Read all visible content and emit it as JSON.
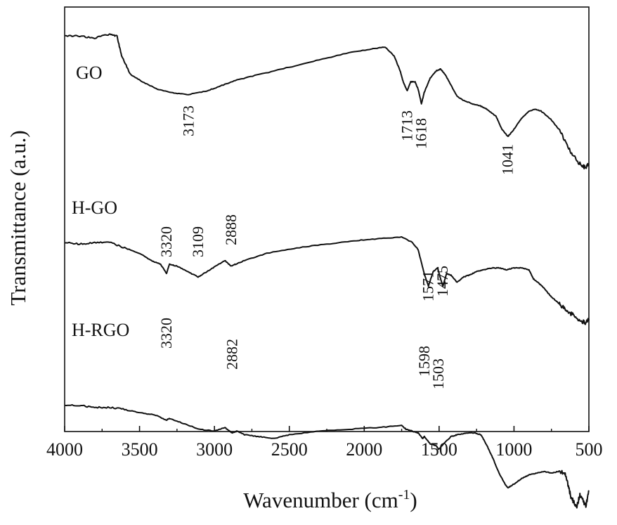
{
  "chart_data": {
    "type": "line",
    "xlabel": "Wavenumber (cm",
    "xlabel_sup": "-1",
    "xlabel_end": ")",
    "ylabel": "Transmittance (a.u.)",
    "xlim": [
      4000,
      500
    ],
    "x_reversed": true,
    "yticks_shown": false,
    "grid": false,
    "xticks": [
      "4000",
      "3500",
      "3000",
      "2500",
      "2000",
      "1500",
      "1000",
      "500"
    ],
    "series": [
      {
        "name": "GO",
        "points": [
          [
            4000,
            0.91
          ],
          [
            3900,
            0.91
          ],
          [
            3800,
            0.9
          ],
          [
            3700,
            0.92
          ],
          [
            3650,
            0.91
          ],
          [
            3620,
            0.8
          ],
          [
            3560,
            0.7
          ],
          [
            3480,
            0.66
          ],
          [
            3380,
            0.62
          ],
          [
            3280,
            0.6
          ],
          [
            3173,
            0.59
          ],
          [
            3050,
            0.61
          ],
          [
            2950,
            0.64
          ],
          [
            2850,
            0.67
          ],
          [
            2700,
            0.7
          ],
          [
            2500,
            0.74
          ],
          [
            2300,
            0.78
          ],
          [
            2100,
            0.82
          ],
          [
            1950,
            0.84
          ],
          [
            1860,
            0.85
          ],
          [
            1800,
            0.8
          ],
          [
            1760,
            0.72
          ],
          [
            1740,
            0.66
          ],
          [
            1713,
            0.61
          ],
          [
            1690,
            0.66
          ],
          [
            1660,
            0.66
          ],
          [
            1640,
            0.62
          ],
          [
            1618,
            0.54
          ],
          [
            1600,
            0.6
          ],
          [
            1560,
            0.68
          ],
          [
            1520,
            0.72
          ],
          [
            1490,
            0.73
          ],
          [
            1460,
            0.7
          ],
          [
            1420,
            0.64
          ],
          [
            1380,
            0.58
          ],
          [
            1340,
            0.56
          ],
          [
            1280,
            0.54
          ],
          [
            1230,
            0.53
          ],
          [
            1180,
            0.51
          ],
          [
            1120,
            0.47
          ],
          [
            1080,
            0.4
          ],
          [
            1041,
            0.36
          ],
          [
            1000,
            0.4
          ],
          [
            950,
            0.46
          ],
          [
            900,
            0.5
          ],
          [
            860,
            0.51
          ],
          [
            820,
            0.5
          ],
          [
            760,
            0.46
          ],
          [
            700,
            0.4
          ],
          [
            650,
            0.32
          ],
          [
            600,
            0.25
          ],
          [
            550,
            0.2
          ],
          [
            520,
            0.19
          ],
          [
            500,
            0.21
          ]
        ]
      },
      {
        "name": "H-GO",
        "points": [
          [
            4000,
            0.62
          ],
          [
            3900,
            0.61
          ],
          [
            3800,
            0.62
          ],
          [
            3700,
            0.62
          ],
          [
            3600,
            0.59
          ],
          [
            3500,
            0.56
          ],
          [
            3420,
            0.52
          ],
          [
            3360,
            0.5
          ],
          [
            3320,
            0.45
          ],
          [
            3300,
            0.5
          ],
          [
            3250,
            0.49
          ],
          [
            3180,
            0.46
          ],
          [
            3109,
            0.43
          ],
          [
            3050,
            0.46
          ],
          [
            2990,
            0.49
          ],
          [
            2930,
            0.52
          ],
          [
            2888,
            0.49
          ],
          [
            2860,
            0.5
          ],
          [
            2800,
            0.52
          ],
          [
            2650,
            0.56
          ],
          [
            2450,
            0.59
          ],
          [
            2250,
            0.61
          ],
          [
            2050,
            0.63
          ],
          [
            1900,
            0.64
          ],
          [
            1750,
            0.65
          ],
          [
            1680,
            0.62
          ],
          [
            1640,
            0.58
          ],
          [
            1600,
            0.45
          ],
          [
            1571,
            0.38
          ],
          [
            1540,
            0.46
          ],
          [
            1510,
            0.48
          ],
          [
            1490,
            0.42
          ],
          [
            1475,
            0.38
          ],
          [
            1450,
            0.45
          ],
          [
            1420,
            0.44
          ],
          [
            1380,
            0.4
          ],
          [
            1340,
            0.43
          ],
          [
            1300,
            0.44
          ],
          [
            1250,
            0.46
          ],
          [
            1200,
            0.47
          ],
          [
            1150,
            0.48
          ],
          [
            1100,
            0.48
          ],
          [
            1050,
            0.47
          ],
          [
            1000,
            0.48
          ],
          [
            950,
            0.48
          ],
          [
            900,
            0.47
          ],
          [
            870,
            0.42
          ],
          [
            840,
            0.4
          ],
          [
            800,
            0.37
          ],
          [
            760,
            0.33
          ],
          [
            720,
            0.3
          ],
          [
            680,
            0.27
          ],
          [
            640,
            0.24
          ],
          [
            600,
            0.22
          ],
          [
            560,
            0.19
          ],
          [
            520,
            0.18
          ],
          [
            500,
            0.2
          ]
        ]
      },
      {
        "name": "H-RGO",
        "points": [
          [
            4000,
            0.35
          ],
          [
            3900,
            0.35
          ],
          [
            3800,
            0.34
          ],
          [
            3700,
            0.34
          ],
          [
            3600,
            0.33
          ],
          [
            3500,
            0.31
          ],
          [
            3400,
            0.3
          ],
          [
            3320,
            0.27
          ],
          [
            3300,
            0.28
          ],
          [
            3200,
            0.25
          ],
          [
            3100,
            0.22
          ],
          [
            3000,
            0.21
          ],
          [
            2930,
            0.23
          ],
          [
            2900,
            0.21
          ],
          [
            2882,
            0.2
          ],
          [
            2850,
            0.21
          ],
          [
            2800,
            0.19
          ],
          [
            2700,
            0.18
          ],
          [
            2600,
            0.17
          ],
          [
            2500,
            0.19
          ],
          [
            2300,
            0.21
          ],
          [
            2100,
            0.22
          ],
          [
            1900,
            0.23
          ],
          [
            1750,
            0.24
          ],
          [
            1720,
            0.22
          ],
          [
            1680,
            0.21
          ],
          [
            1640,
            0.2
          ],
          [
            1610,
            0.17
          ],
          [
            1598,
            0.18
          ],
          [
            1560,
            0.14
          ],
          [
            1520,
            0.13
          ],
          [
            1503,
            0.11
          ],
          [
            1470,
            0.14
          ],
          [
            1420,
            0.18
          ],
          [
            1380,
            0.19
          ],
          [
            1320,
            0.2
          ],
          [
            1260,
            0.2
          ],
          [
            1220,
            0.19
          ],
          [
            1180,
            0.13
          ],
          [
            1140,
            0.06
          ],
          [
            1100,
            -0.02
          ],
          [
            1060,
            -0.08
          ],
          [
            1040,
            -0.1
          ],
          [
            1000,
            -0.08
          ],
          [
            950,
            -0.05
          ],
          [
            900,
            -0.03
          ],
          [
            850,
            -0.02
          ],
          [
            800,
            -0.01
          ],
          [
            750,
            -0.02
          ],
          [
            700,
            -0.01
          ],
          [
            660,
            -0.02
          ],
          [
            640,
            -0.08
          ],
          [
            620,
            -0.15
          ],
          [
            600,
            -0.18
          ],
          [
            580,
            -0.2
          ],
          [
            560,
            -0.14
          ],
          [
            540,
            -0.17
          ],
          [
            520,
            -0.2
          ],
          [
            500,
            -0.12
          ]
        ]
      }
    ],
    "annotations": [
      {
        "series": "GO",
        "text": "3173",
        "x": 3173
      },
      {
        "series": "GO",
        "text": "1713",
        "x": 1713
      },
      {
        "series": "GO",
        "text": "1618",
        "x": 1618
      },
      {
        "series": "GO",
        "text": "1041",
        "x": 1041
      },
      {
        "series": "H-GO",
        "text": "3320",
        "x": 3320
      },
      {
        "series": "H-GO",
        "text": "3109",
        "x": 3109
      },
      {
        "series": "H-GO",
        "text": "2888",
        "x": 2888
      },
      {
        "series": "H-GO",
        "text": "1571",
        "x": 1571
      },
      {
        "series": "H-GO",
        "text": "1475",
        "x": 1475
      },
      {
        "series": "H-RGO",
        "text": "3320",
        "x": 3320
      },
      {
        "series": "H-RGO",
        "text": "2882",
        "x": 2882
      },
      {
        "series": "H-RGO",
        "text": "1598",
        "x": 1598
      },
      {
        "series": "H-RGO",
        "text": "1503",
        "x": 1503
      }
    ]
  }
}
